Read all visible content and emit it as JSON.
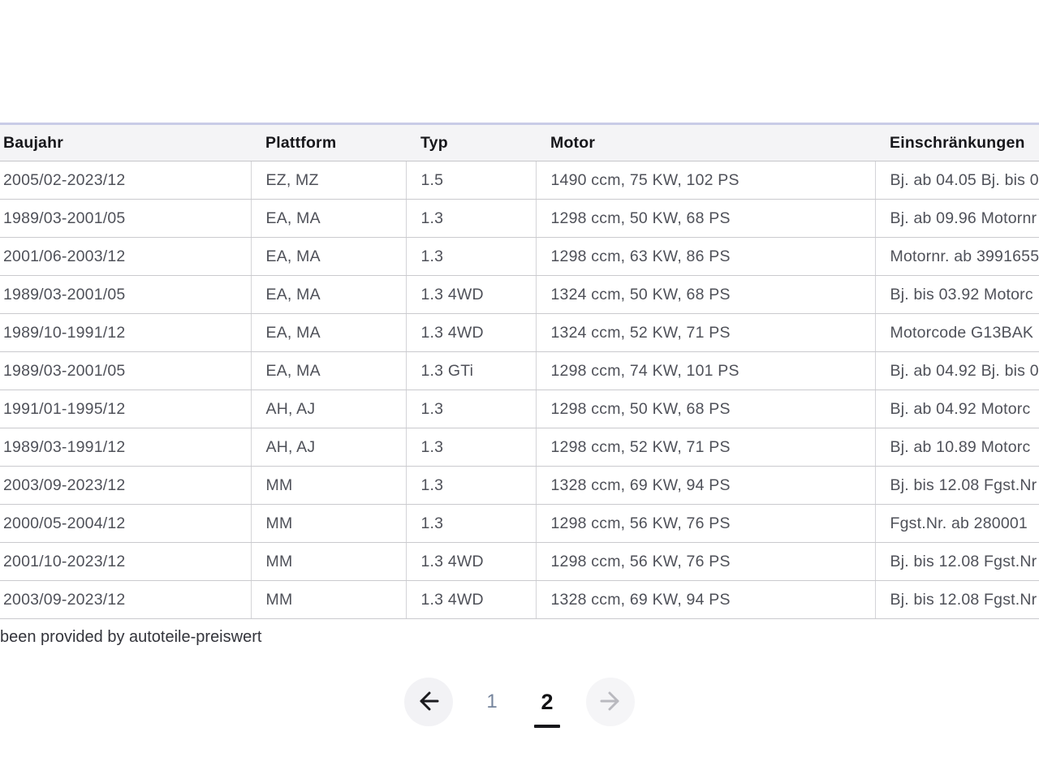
{
  "table": {
    "columns": [
      {
        "key": "baujahr",
        "label": "Baujahr"
      },
      {
        "key": "plattform",
        "label": "Plattform"
      },
      {
        "key": "typ",
        "label": "Typ"
      },
      {
        "key": "motor",
        "label": "Motor"
      },
      {
        "key": "einschraenkungen",
        "label": "Einschränkungen"
      }
    ],
    "rows": [
      {
        "baujahr": "2005/02-2023/12",
        "plattform": "EZ, MZ",
        "typ": "1.5",
        "motor": "1490 ccm, 75 KW, 102 PS",
        "einschraenkungen": "Bj. ab 04.05 Bj. bis 0"
      },
      {
        "baujahr": "1989/03-2001/05",
        "plattform": "EA, MA",
        "typ": "1.3",
        "motor": "1298 ccm, 50 KW, 68 PS",
        "einschraenkungen": "Bj. ab 09.96 Motornr"
      },
      {
        "baujahr": "2001/06-2003/12",
        "plattform": "EA, MA",
        "typ": "1.3",
        "motor": "1298 ccm, 63 KW, 86 PS",
        "einschraenkungen": "Motornr. ab 3991655"
      },
      {
        "baujahr": "1989/03-2001/05",
        "plattform": "EA, MA",
        "typ": "1.3 4WD",
        "motor": "1324 ccm, 50 KW, 68 PS",
        "einschraenkungen": "Bj. bis 03.92 Motorc"
      },
      {
        "baujahr": "1989/10-1991/12",
        "plattform": "EA, MA",
        "typ": "1.3 4WD",
        "motor": "1324 ccm, 52 KW, 71 PS",
        "einschraenkungen": "Motorcode G13BAK"
      },
      {
        "baujahr": "1989/03-2001/05",
        "plattform": "EA, MA",
        "typ": "1.3 GTi",
        "motor": "1298 ccm, 74 KW, 101 PS",
        "einschraenkungen": "Bj. ab 04.92 Bj. bis 0"
      },
      {
        "baujahr": "1991/01-1995/12",
        "plattform": "AH, AJ",
        "typ": "1.3",
        "motor": "1298 ccm, 50 KW, 68 PS",
        "einschraenkungen": "Bj. ab 04.92 Motorc"
      },
      {
        "baujahr": "1989/03-1991/12",
        "plattform": "AH, AJ",
        "typ": "1.3",
        "motor": "1298 ccm, 52 KW, 71 PS",
        "einschraenkungen": "Bj. ab 10.89 Motorc"
      },
      {
        "baujahr": "2003/09-2023/12",
        "plattform": "MM",
        "typ": "1.3",
        "motor": "1328 ccm, 69 KW, 94 PS",
        "einschraenkungen": "Bj. bis 12.08 Fgst.Nr"
      },
      {
        "baujahr": "2000/05-2004/12",
        "plattform": "MM",
        "typ": "1.3",
        "motor": "1298 ccm, 56 KW, 76 PS",
        "einschraenkungen": "Fgst.Nr. ab 280001"
      },
      {
        "baujahr": "2001/10-2023/12",
        "plattform": "MM",
        "typ": "1.3 4WD",
        "motor": "1298 ccm, 56 KW, 76 PS",
        "einschraenkungen": "Bj. bis 12.08 Fgst.Nr"
      },
      {
        "baujahr": "2003/09-2023/12",
        "plattform": "MM",
        "typ": "1.3 4WD",
        "motor": "1328 ccm, 69 KW, 94 PS",
        "einschraenkungen": "Bj. bis 12.08 Fgst.Nr"
      }
    ]
  },
  "attribution": "been provided by autoteile-preiswert",
  "pagination": {
    "prev_icon": "arrow-left-icon",
    "next_icon": "arrow-right-icon",
    "pages": [
      {
        "label": "1",
        "active": false
      },
      {
        "label": "2",
        "active": true
      }
    ],
    "active_page": "2",
    "prev_enabled": true,
    "next_enabled": false
  },
  "colors": {
    "header_bg": "#f4f4f6",
    "table_top_border": "#c9cce7",
    "row_border": "#cacace",
    "column_border": "#d4d4d8",
    "header_text": "#17171b",
    "body_text": "#4f5159",
    "page_inactive": "#75849c",
    "page_active": "#121214",
    "arrow_enabled": "#1b1b1f",
    "arrow_disabled": "#b9b9bf",
    "circle_bg": "#f2f2f5"
  }
}
